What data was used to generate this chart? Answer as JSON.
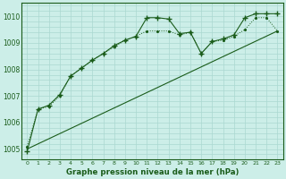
{
  "title": "Graphe pression niveau de la mer (hPa)",
  "bg_color": "#cceee8",
  "grid_color": "#aad8d0",
  "line_color": "#1a5c1a",
  "xlim": [
    -0.5,
    23.5
  ],
  "ylim": [
    1004.6,
    1010.5
  ],
  "xticks": [
    0,
    1,
    2,
    3,
    4,
    5,
    6,
    7,
    8,
    9,
    10,
    11,
    12,
    13,
    14,
    15,
    16,
    17,
    18,
    19,
    20,
    21,
    22,
    23
  ],
  "yticks": [
    1005,
    1006,
    1007,
    1008,
    1009,
    1010
  ],
  "series_dotted_x": [
    0,
    1,
    2,
    3,
    4,
    5,
    6,
    7,
    8,
    9,
    10,
    11,
    12,
    13,
    14,
    15,
    16,
    17,
    18,
    19,
    20,
    21,
    22,
    23
  ],
  "series_dotted_y": [
    1005.1,
    1006.5,
    1006.6,
    1007.0,
    1007.75,
    1008.05,
    1008.35,
    1008.6,
    1008.85,
    1009.1,
    1009.25,
    1009.45,
    1009.45,
    1009.45,
    1009.3,
    1009.4,
    1008.6,
    1009.05,
    1009.1,
    1009.25,
    1009.5,
    1009.95,
    1009.95,
    1009.45
  ],
  "series_cross_x": [
    0,
    1,
    2,
    3,
    4,
    5,
    6,
    7,
    8,
    9,
    10,
    11,
    12,
    13,
    14,
    15,
    16,
    17,
    18,
    19,
    20,
    21,
    22,
    23
  ],
  "series_cross_y": [
    1004.9,
    1006.5,
    1006.65,
    1007.05,
    1007.75,
    1008.05,
    1008.35,
    1008.6,
    1008.9,
    1009.1,
    1009.25,
    1009.95,
    1009.95,
    1009.9,
    1009.35,
    1009.4,
    1008.6,
    1009.05,
    1009.15,
    1009.3,
    1009.95,
    1010.1,
    1010.1,
    1010.1
  ],
  "series_line_x": [
    0,
    23
  ],
  "series_line_y": [
    1005.0,
    1009.45
  ]
}
